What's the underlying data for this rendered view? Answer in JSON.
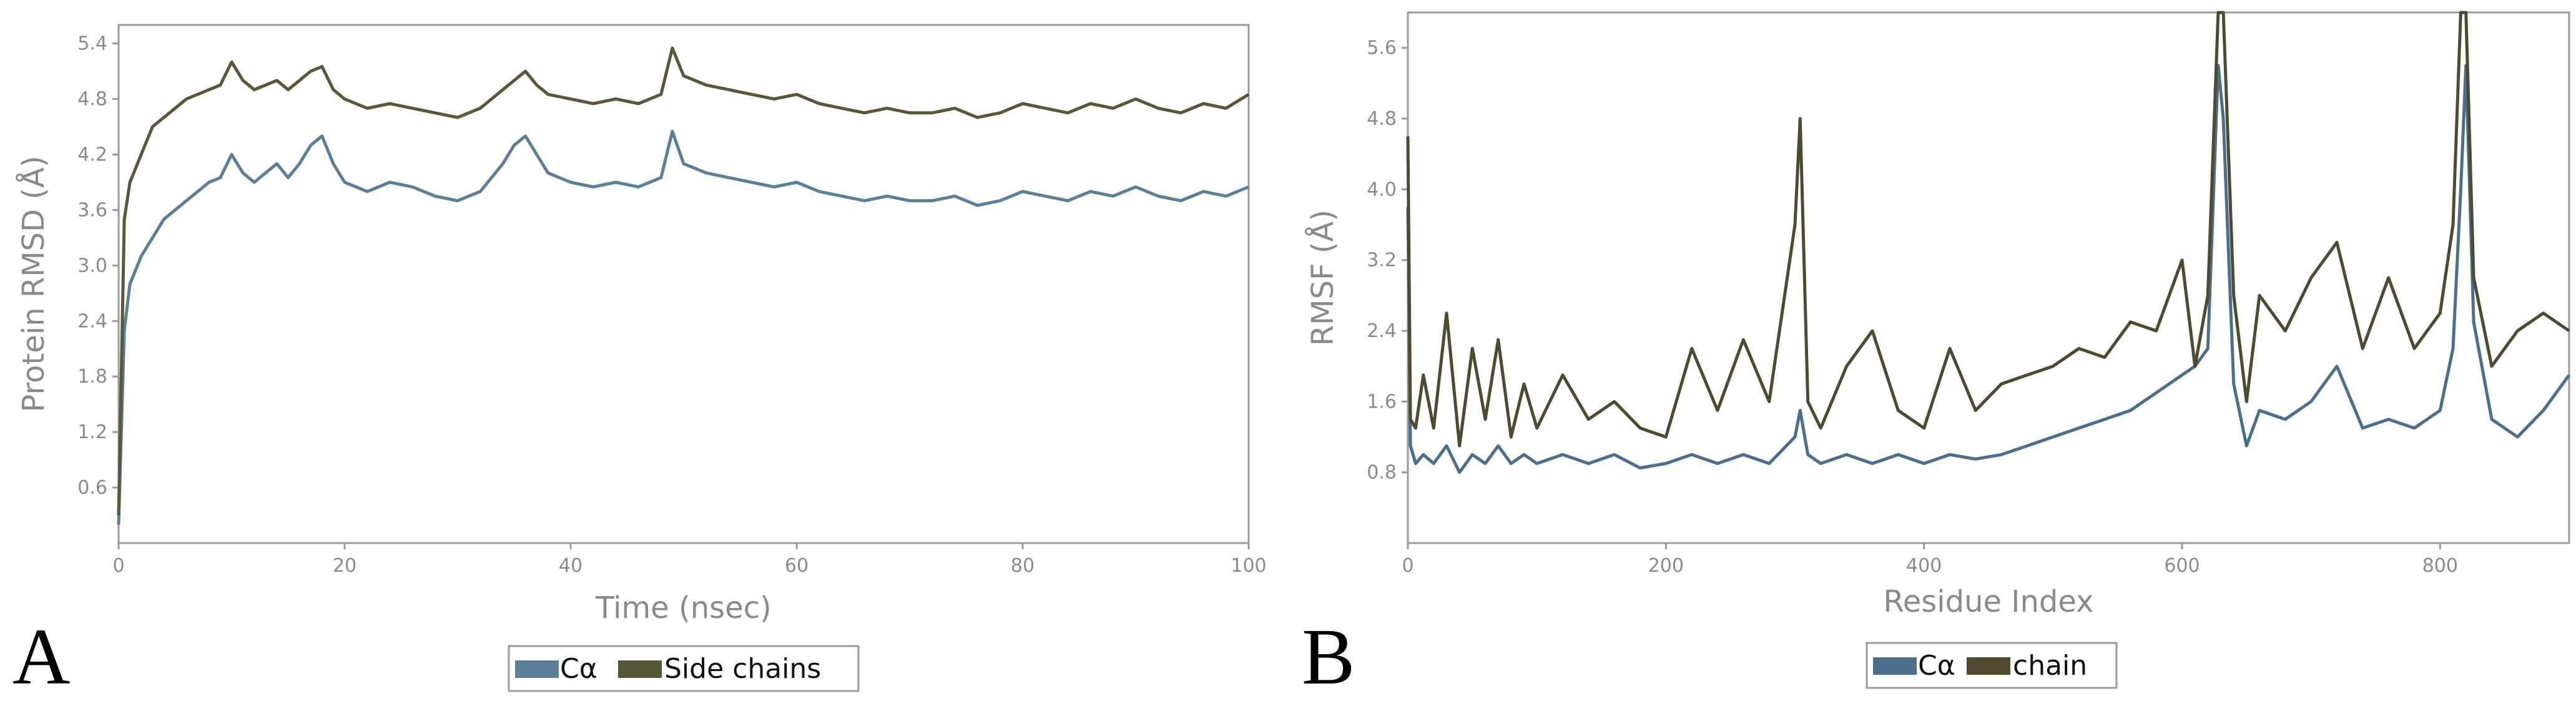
{
  "chart_data": [
    {
      "panel": "A",
      "type": "line",
      "ylabel": "Protein RMSD (Å)",
      "xlabel": "Time (nsec)",
      "xlim": [
        0,
        100
      ],
      "ylim": [
        0,
        5.6
      ],
      "xticks": [
        0,
        20,
        40,
        60,
        80,
        100
      ],
      "yticks": [
        0.6,
        1.2,
        1.8,
        2.4,
        3.0,
        3.6,
        4.2,
        4.8,
        5.4
      ],
      "ytick_labels": [
        "0.6",
        "1.2",
        "1.8",
        "2.4",
        "3.0",
        "3.6",
        "4.2",
        "4.8",
        "5.4"
      ],
      "legend": [
        "Cα",
        "Side chains"
      ],
      "legend_position": "bottom-center",
      "series": [
        {
          "name": "Cα",
          "color": "#5c7f98",
          "x": [
            0,
            0.5,
            1,
            2,
            3,
            4,
            5,
            6,
            7,
            8,
            9,
            10,
            11,
            12,
            13,
            14,
            15,
            16,
            17,
            18,
            19,
            20,
            22,
            24,
            26,
            28,
            30,
            32,
            34,
            35,
            36,
            37,
            38,
            40,
            42,
            44,
            46,
            48,
            49,
            50,
            52,
            54,
            56,
            58,
            60,
            62,
            64,
            66,
            68,
            70,
            72,
            74,
            76,
            78,
            80,
            82,
            84,
            86,
            88,
            90,
            92,
            94,
            96,
            98,
            100
          ],
          "y": [
            0.2,
            2.3,
            2.8,
            3.1,
            3.3,
            3.5,
            3.6,
            3.7,
            3.8,
            3.9,
            3.95,
            4.2,
            4.0,
            3.9,
            4.0,
            4.1,
            3.95,
            4.1,
            4.3,
            4.4,
            4.1,
            3.9,
            3.8,
            3.9,
            3.85,
            3.75,
            3.7,
            3.8,
            4.1,
            4.3,
            4.4,
            4.2,
            4.0,
            3.9,
            3.85,
            3.9,
            3.85,
            3.95,
            4.45,
            4.1,
            4.0,
            3.95,
            3.9,
            3.85,
            3.9,
            3.8,
            3.75,
            3.7,
            3.75,
            3.7,
            3.7,
            3.75,
            3.65,
            3.7,
            3.8,
            3.75,
            3.7,
            3.8,
            3.75,
            3.85,
            3.75,
            3.7,
            3.8,
            3.75,
            3.85
          ]
        },
        {
          "name": "Side chains",
          "color": "#5a563a",
          "x": [
            0,
            0.5,
            1,
            2,
            3,
            4,
            5,
            6,
            7,
            8,
            9,
            10,
            11,
            12,
            13,
            14,
            15,
            16,
            17,
            18,
            19,
            20,
            22,
            24,
            26,
            28,
            30,
            32,
            34,
            35,
            36,
            37,
            38,
            40,
            42,
            44,
            46,
            48,
            49,
            50,
            52,
            54,
            56,
            58,
            60,
            62,
            64,
            66,
            68,
            70,
            72,
            74,
            76,
            78,
            80,
            82,
            84,
            86,
            88,
            90,
            92,
            94,
            96,
            98,
            100
          ],
          "y": [
            0.3,
            3.5,
            3.9,
            4.2,
            4.5,
            4.6,
            4.7,
            4.8,
            4.85,
            4.9,
            4.95,
            5.2,
            5.0,
            4.9,
            4.95,
            5.0,
            4.9,
            5.0,
            5.1,
            5.15,
            4.9,
            4.8,
            4.7,
            4.75,
            4.7,
            4.65,
            4.6,
            4.7,
            4.9,
            5.0,
            5.1,
            4.95,
            4.85,
            4.8,
            4.75,
            4.8,
            4.75,
            4.85,
            5.35,
            5.05,
            4.95,
            4.9,
            4.85,
            4.8,
            4.85,
            4.75,
            4.7,
            4.65,
            4.7,
            4.65,
            4.65,
            4.7,
            4.6,
            4.65,
            4.75,
            4.7,
            4.65,
            4.75,
            4.7,
            4.8,
            4.7,
            4.65,
            4.75,
            4.7,
            4.85
          ]
        }
      ]
    },
    {
      "panel": "B",
      "type": "line",
      "ylabel": "RMSF (Å)",
      "xlabel": "Residue Index",
      "xlim": [
        0,
        900
      ],
      "ylim": [
        0,
        6.0
      ],
      "xticks": [
        0,
        200,
        400,
        600,
        800
      ],
      "yticks": [
        0.8,
        1.6,
        2.4,
        3.2,
        4.0,
        4.8,
        5.6
      ],
      "ytick_labels": [
        "0.8",
        "1.6",
        "2.4",
        "3.2",
        "4.0",
        "4.8",
        "5.6"
      ],
      "legend": [
        "Cα",
        "chain"
      ],
      "legend_position": "bottom-center",
      "series": [
        {
          "name": "Cα",
          "color": "#4a6e8c",
          "x": [
            0,
            2,
            6,
            12,
            20,
            30,
            40,
            50,
            60,
            70,
            80,
            90,
            100,
            120,
            140,
            160,
            180,
            200,
            220,
            240,
            260,
            280,
            300,
            304,
            310,
            320,
            340,
            360,
            380,
            400,
            420,
            440,
            460,
            480,
            500,
            520,
            540,
            560,
            580,
            600,
            610,
            620,
            628,
            632,
            640,
            650,
            660,
            680,
            700,
            720,
            740,
            760,
            780,
            800,
            810,
            816,
            820,
            826,
            840,
            860,
            880,
            900
          ],
          "y": [
            3.8,
            1.1,
            0.9,
            1.0,
            0.9,
            1.1,
            0.8,
            1.0,
            0.9,
            1.1,
            0.9,
            1.0,
            0.9,
            1.0,
            0.9,
            1.0,
            0.85,
            0.9,
            1.0,
            0.9,
            1.0,
            0.9,
            1.2,
            1.5,
            1.0,
            0.9,
            1.0,
            0.9,
            1.0,
            0.9,
            1.0,
            0.95,
            1.0,
            1.1,
            1.2,
            1.3,
            1.4,
            1.5,
            1.7,
            1.9,
            2.0,
            2.2,
            5.4,
            4.8,
            1.8,
            1.1,
            1.5,
            1.4,
            1.6,
            2.0,
            1.3,
            1.4,
            1.3,
            1.5,
            2.2,
            4.0,
            5.4,
            2.5,
            1.4,
            1.2,
            1.5,
            1.9
          ]
        },
        {
          "name": "chain",
          "color": "#4e4a30",
          "x": [
            0,
            2,
            6,
            12,
            20,
            30,
            40,
            50,
            60,
            70,
            80,
            90,
            100,
            120,
            140,
            160,
            180,
            200,
            220,
            240,
            260,
            280,
            300,
            304,
            310,
            320,
            340,
            360,
            380,
            400,
            420,
            440,
            460,
            480,
            500,
            520,
            540,
            560,
            580,
            600,
            610,
            620,
            628,
            632,
            640,
            650,
            660,
            680,
            700,
            720,
            740,
            760,
            780,
            800,
            810,
            816,
            820,
            826,
            840,
            860,
            880,
            900
          ],
          "y": [
            4.6,
            1.4,
            1.3,
            1.9,
            1.3,
            2.6,
            1.1,
            2.2,
            1.4,
            2.3,
            1.2,
            1.8,
            1.3,
            1.9,
            1.4,
            1.6,
            1.3,
            1.2,
            2.2,
            1.5,
            2.3,
            1.6,
            3.6,
            4.8,
            1.6,
            1.3,
            2.0,
            2.4,
            1.5,
            1.3,
            2.2,
            1.5,
            1.8,
            1.9,
            2.0,
            2.2,
            2.1,
            2.5,
            2.4,
            3.2,
            2.0,
            2.8,
            6.0,
            6.0,
            2.8,
            1.6,
            2.8,
            2.4,
            3.0,
            3.4,
            2.2,
            3.0,
            2.2,
            2.6,
            3.6,
            6.0,
            6.0,
            3.0,
            2.0,
            2.4,
            2.6,
            2.4
          ]
        }
      ]
    }
  ],
  "panel_labels": {
    "a": "A",
    "b": "B"
  },
  "legend_a": {
    "item1": "Cα",
    "item2": "Side chains"
  },
  "legend_b": {
    "item1": "Cα",
    "item2": "chain"
  }
}
